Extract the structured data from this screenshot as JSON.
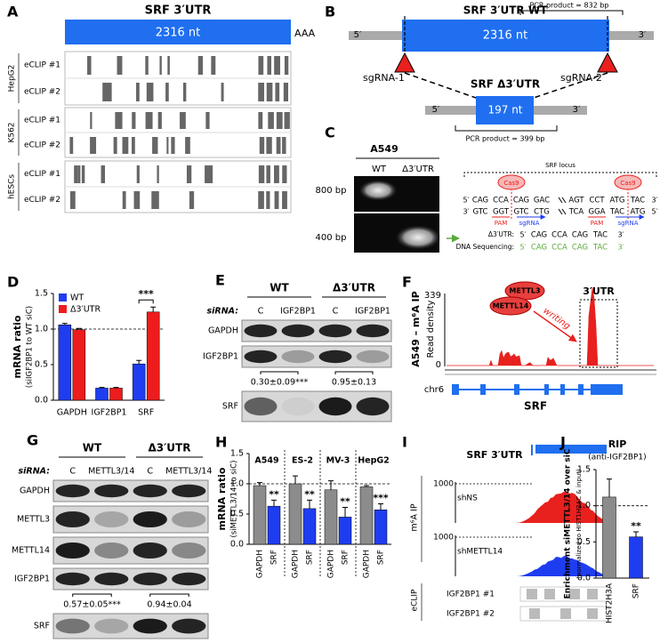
{
  "figure": {
    "ends": [
      "5′",
      "3′"
    ],
    "A": {
      "label": "A",
      "title": "SRF 3′UTR",
      "length": "2316 nt",
      "polyA": "AAA",
      "cell_lines": [
        {
          "name": "HepG2",
          "tracks": [
            "eCLIP #1",
            "eCLIP #2"
          ]
        },
        {
          "name": "K562",
          "tracks": [
            "eCLIP #1",
            "eCLIP #2"
          ]
        },
        {
          "name": "hESCs",
          "tracks": [
            "eCLIP #1",
            "eCLIP #2"
          ]
        }
      ]
    },
    "B": {
      "label": "B",
      "wt_title": "SRF 3′UTR WT",
      "wt_pcr": "PCR product = 832 bp",
      "wt_length": "2316 nt",
      "sgrnas": [
        "sgRNA-1",
        "sgRNA-2"
      ],
      "del_title": "SRF Δ3′UTR",
      "del_length": "197 nt",
      "del_pcr": "PCR product = 399 bp"
    },
    "C": {
      "label": "C",
      "cell_line": "A549",
      "lanes": [
        "WT",
        "Δ3′UTR"
      ],
      "markers": [
        "800 bp",
        "400 bp"
      ],
      "locus": "SRF locus",
      "cas9": "Cas9",
      "top_strand": [
        "CAG",
        "CCA",
        "CAG",
        "GAC",
        "AGT",
        "CCT",
        "ATG",
        "TAC"
      ],
      "bottom_strand": [
        "GTC",
        "GGT",
        "GTC",
        "CTG",
        "TCA",
        "GGA",
        "TAC",
        "ATG"
      ],
      "pam": "PAM",
      "sgrna": "sgRNA",
      "del_label": "Δ3′UTR:",
      "seq_label": "DNA Sequencing:",
      "del_seq": [
        "CAG",
        "CCA",
        "CAG",
        "TAC"
      ],
      "seq_read": [
        "CAG",
        "CCA",
        "CAG",
        "TAC"
      ]
    },
    "E": {
      "label": "E",
      "conditions": [
        "WT",
        "Δ3′UTR"
      ],
      "sirna_label": "siRNA:",
      "sirnas": [
        "C",
        "IGF2BP1",
        "C",
        "IGF2BP1"
      ],
      "rows": [
        "GAPDH",
        "IGF2BP1",
        "SRF"
      ],
      "quantification": [
        "0.30±0.09***",
        "0.95±0.13"
      ]
    },
    "F": {
      "label": "F",
      "ylabel": "A549 – m⁶A IP",
      "ylabel_sub": "Read density",
      "ymax": "339",
      "ymin": "0",
      "enzymes": [
        "METTL3",
        "METTL14"
      ],
      "arrow": "writing",
      "region": "3′UTR",
      "chrom": "chr6",
      "gene": "SRF"
    },
    "G": {
      "label": "G",
      "conditions": [
        "WT",
        "Δ3′UTR"
      ],
      "sirna_label": "siRNA:",
      "sirnas": [
        "C",
        "METTL3/14",
        "C",
        "METTL3/14"
      ],
      "rows": [
        "GAPDH",
        "METTL3",
        "METTL14",
        "IGF2BP1",
        "SRF"
      ],
      "quantification": [
        "0.57±0.05***",
        "0.94±0.04"
      ]
    },
    "I": {
      "label": "I",
      "title": "SRF 3′UTR",
      "ylabel": "m⁶A IP",
      "tracks": [
        {
          "max": "1000",
          "name": "shNS"
        },
        {
          "max": "1000",
          "name": "shMETTL14"
        }
      ],
      "clip_label": "eCLIP",
      "clip_tracks": [
        "IGF2BP1 #1",
        "IGF2BP1 #2"
      ]
    }
  },
  "chart_data": [
    {
      "type": "bar",
      "label": "D",
      "ylabel": "mRNA ratio",
      "ylabel_sub": "(siIGF2BP1 to WT siC)",
      "categories": [
        "GAPDH",
        "IGF2BP1",
        "SRF"
      ],
      "series": [
        {
          "name": "WT",
          "color": "#1f3df0",
          "values": [
            1.06,
            0.17,
            0.51
          ],
          "errors": [
            0.02,
            0.01,
            0.05
          ]
        },
        {
          "name": "Δ3′UTR",
          "color": "#ee1c1c",
          "values": [
            0.99,
            0.17,
            1.24
          ],
          "errors": [
            0.02,
            0.01,
            0.07
          ]
        }
      ],
      "ylim": [
        0,
        1.5
      ],
      "yticks": [
        {
          "value": 0,
          "label": "0.0"
        },
        0.5,
        {
          "value": 1,
          "label": "1.0"
        },
        1.5
      ],
      "reference_line": 1,
      "legend": "upper-left",
      "annotations": [
        {
          "text": "***",
          "category": "SRF"
        }
      ]
    },
    {
      "type": "bar",
      "label": "H",
      "ylabel": "mRNA ratio",
      "ylabel_sub": "(siMETTL3/14 to siC)",
      "categories": [
        "A549",
        "ES-2",
        "MV-3",
        "HepG2"
      ],
      "series": [
        {
          "name": "GAPDH",
          "color": "#8c8c8c",
          "values": [
            0.97,
            1.0,
            0.9,
            0.95
          ],
          "errors": [
            0.05,
            0.13,
            0.15,
            0.02
          ]
        },
        {
          "name": "SRF",
          "color": "#1f3df0",
          "values": [
            0.63,
            0.59,
            0.45,
            0.57
          ],
          "errors": [
            0.1,
            0.14,
            0.16,
            0.1
          ]
        }
      ],
      "ylim": [
        0,
        1.5
      ],
      "yticks": [
        {
          "value": 0,
          "label": "0.0"
        },
        0.5,
        {
          "value": 1,
          "label": "1.0"
        },
        1.5
      ],
      "reference_line": 1,
      "annotations": [
        {
          "text": "**",
          "category": "A549"
        },
        {
          "text": "**",
          "category": "ES-2"
        },
        {
          "text": "**",
          "category": "MV-3"
        },
        {
          "text": "***",
          "category": "HepG2"
        }
      ]
    },
    {
      "type": "bar",
      "label": "J",
      "title": "RIP",
      "subtitle": "(anti-IGF2BP1)",
      "ylabel": "Enrichment siMETTL3/14 over siC",
      "ylabel_sub": "(normalized to HIST1H2AC & input)",
      "categories": [
        "HIST2H3A",
        "SRF"
      ],
      "values": [
        1.12,
        0.57
      ],
      "errors": [
        0.25,
        0.07
      ],
      "colors": [
        "#8c8c8c",
        "#1f3df0"
      ],
      "ylim": [
        0,
        1.5
      ],
      "yticks": [
        {
          "value": 0,
          "label": "0.0"
        },
        0.5,
        {
          "value": 1,
          "label": "1.0"
        },
        1.5
      ],
      "reference_line": 1,
      "annotations": [
        {
          "text": "**",
          "category": "SRF"
        }
      ]
    }
  ]
}
